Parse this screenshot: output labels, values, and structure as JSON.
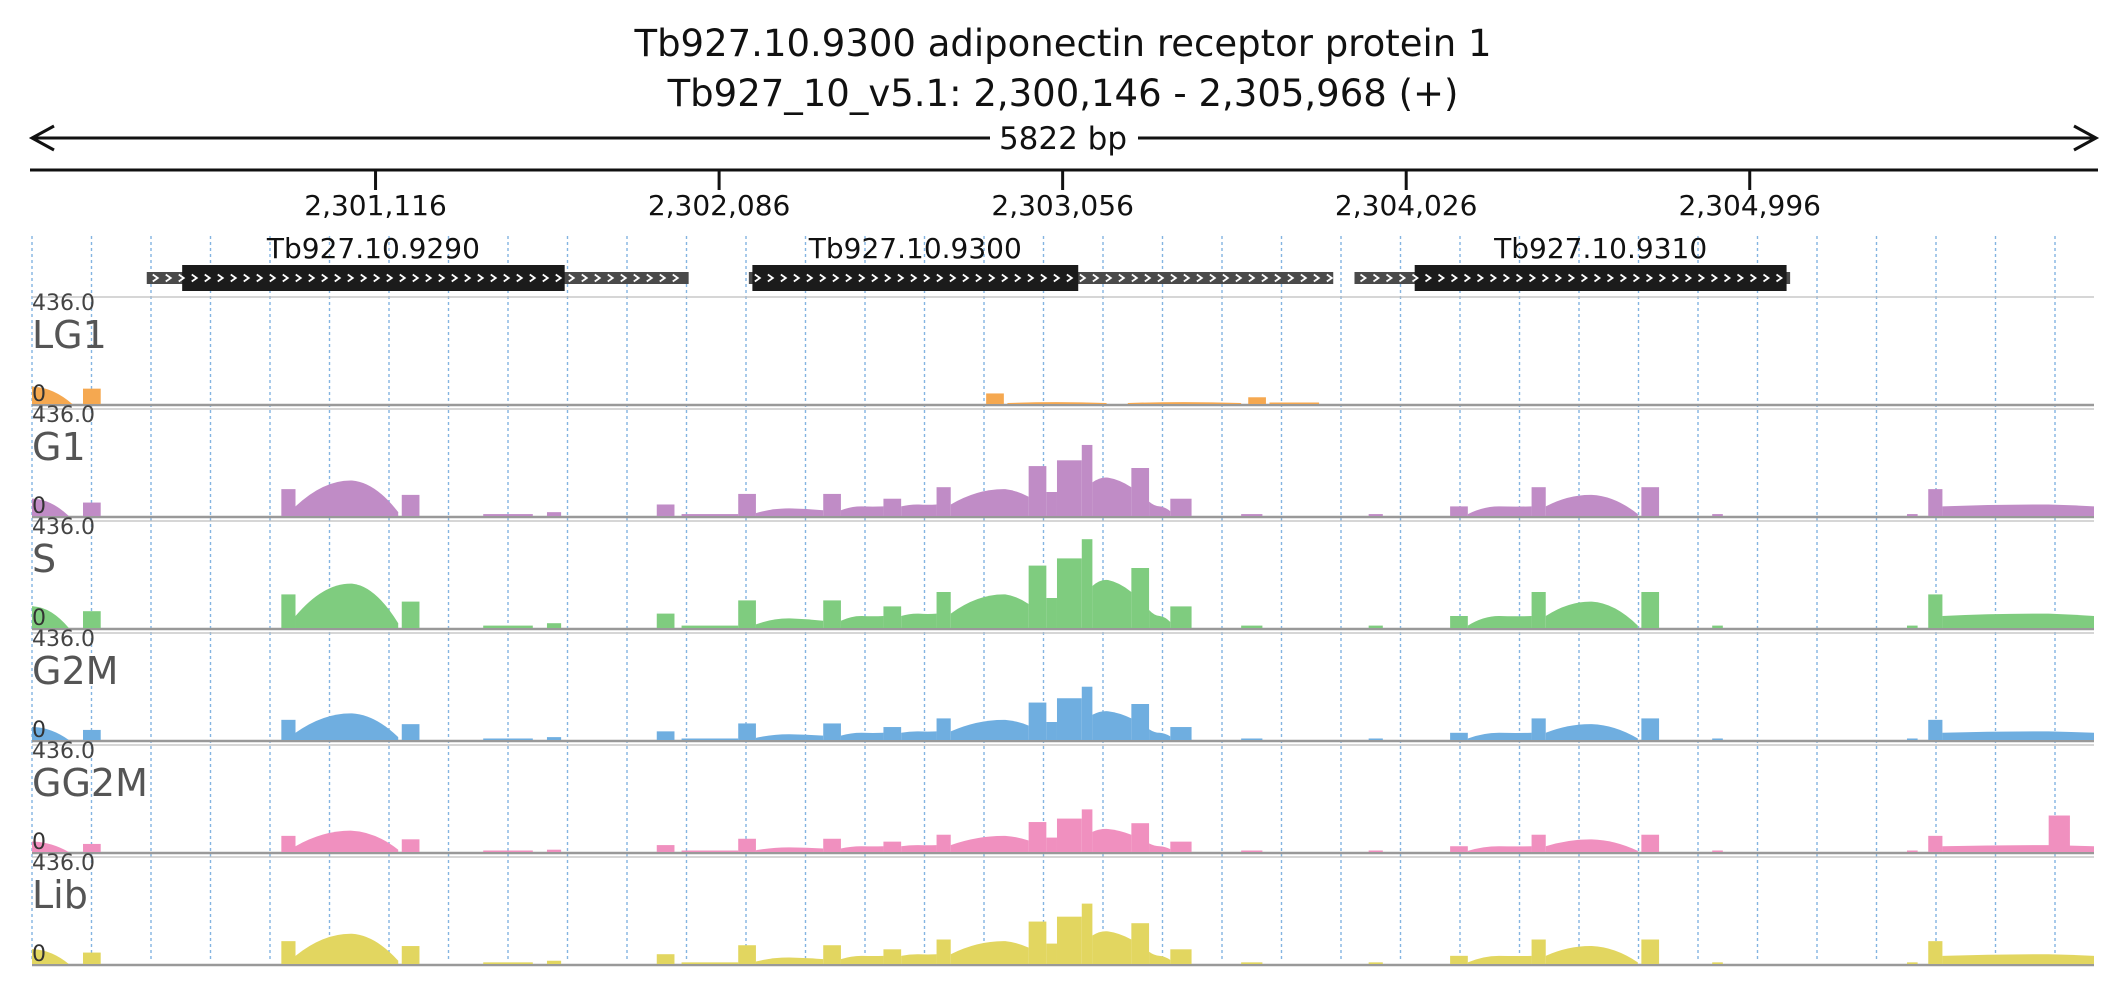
{
  "header": {
    "title_line1": "Tb927.10.9300  adiponectin receptor protein 1",
    "title_line2": "Tb927_10_v5.1: 2,300,146 - 2,305,968 (+)",
    "span_label": "5822 bp"
  },
  "region": {
    "start": 2300146,
    "end": 2305968
  },
  "ruler": {
    "ticks": [
      {
        "pos": 2301116,
        "label": "2,301,116"
      },
      {
        "pos": 2302086,
        "label": "2,302,086"
      },
      {
        "pos": 2303056,
        "label": "2,303,056"
      },
      {
        "pos": 2304026,
        "label": "2,304,026"
      },
      {
        "pos": 2304996,
        "label": "2,304,996"
      }
    ]
  },
  "genes": [
    {
      "name": "Tb927.10.9290",
      "utr5": [
        2300470,
        2300570
      ],
      "cds": [
        2300570,
        2301650
      ],
      "utr3": [
        2301650,
        2302000
      ]
    },
    {
      "name": "Tb927.10.9300",
      "utr5": [
        2302170,
        2302180
      ],
      "cds": [
        2302180,
        2303100
      ],
      "utr3": [
        2303100,
        2303820
      ]
    },
    {
      "name": "Tb927.10.9310",
      "utr5": [
        2303880,
        2304050
      ],
      "cds": [
        2304050,
        2305100
      ],
      "utr3": [
        2305100,
        2305110
      ]
    }
  ],
  "tracks": [
    {
      "name": "LG1",
      "max_label": "436.0",
      "min_label": "0",
      "color": "#F5A850"
    },
    {
      "name": "G1",
      "max_label": "436.0",
      "min_label": "0",
      "color": "#C08CC6"
    },
    {
      "name": "S",
      "max_label": "436.0",
      "min_label": "0",
      "color": "#7FCC7F"
    },
    {
      "name": "G2M",
      "max_label": "436.0",
      "min_label": "0",
      "color": "#6FAEE0"
    },
    {
      "name": "GG2M",
      "max_label": "436.0",
      "min_label": "0",
      "color": "#F090BF"
    },
    {
      "name": "Lib",
      "max_label": "436.0",
      "min_label": "0",
      "color": "#E2D660"
    }
  ]
}
